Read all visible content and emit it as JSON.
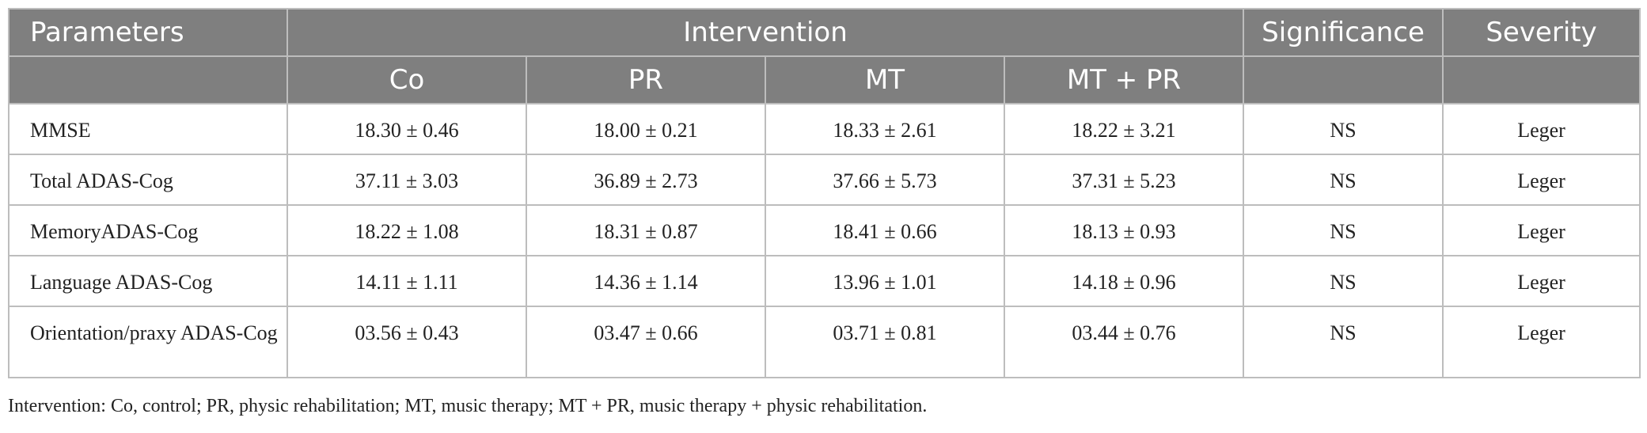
{
  "header": {
    "parameters": "Parameters",
    "intervention": "Intervention",
    "significance": "Significance",
    "severity": "Severity",
    "subcolumns": [
      "Co",
      "PR",
      "MT",
      "MT + PR"
    ]
  },
  "rows": [
    {
      "parameter": "MMSE",
      "co": "18.30 ± 0.46",
      "pr": "18.00 ± 0.21",
      "mt": "18.33 ± 2.61",
      "mtpr": "18.22 ± 3.21",
      "significance": "NS",
      "severity": "Leger"
    },
    {
      "parameter": "Total ADAS-Cog",
      "co": "37.11 ± 3.03",
      "pr": "36.89 ± 2.73",
      "mt": "37.66 ± 5.73",
      "mtpr": "37.31 ± 5.23",
      "significance": "NS",
      "severity": "Leger"
    },
    {
      "parameter": "MemoryADAS-Cog",
      "co": "18.22 ± 1.08",
      "pr": "18.31 ± 0.87",
      "mt": "18.41 ± 0.66",
      "mtpr": "18.13 ± 0.93",
      "significance": "NS",
      "severity": "Leger"
    },
    {
      "parameter": "Language ADAS-Cog",
      "co": "14.11 ± 1.11",
      "pr": "14.36 ± 1.14",
      "mt": "13.96 ± 1.01",
      "mtpr": "14.18 ± 0.96",
      "significance": "NS",
      "severity": "Leger"
    },
    {
      "parameter": "Orientation/praxy ADAS-Cog",
      "co": "03.56 ± 0.43",
      "pr": "03.47 ± 0.66",
      "mt": "03.71 ± 0.81",
      "mtpr": "03.44 ± 0.76",
      "significance": "NS",
      "severity": "Leger"
    }
  ],
  "footnote": "Intervention: Co, control; PR, physic rehabilitation; MT, music therapy; MT + PR, music therapy + physic rehabilitation.",
  "colors": {
    "header_bg": "#7f7f7f",
    "header_text": "#ffffff",
    "border": "#bdbdbd"
  }
}
